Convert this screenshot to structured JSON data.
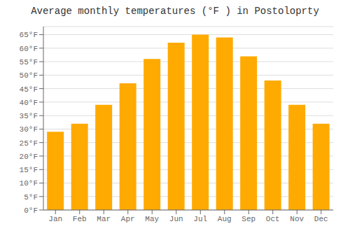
{
  "chart_data": {
    "type": "bar",
    "title": "Average monthly temperatures (°F ) in Postoloprty",
    "categories": [
      "Jan",
      "Feb",
      "Mar",
      "Apr",
      "May",
      "Jun",
      "Jul",
      "Aug",
      "Sep",
      "Oct",
      "Nov",
      "Dec"
    ],
    "values": [
      29,
      32,
      39,
      47,
      56,
      62,
      65,
      64,
      57,
      48,
      39,
      32
    ],
    "color": "#FFAA00",
    "ylim": [
      0,
      68
    ],
    "yticks": [
      {
        "value": 0,
        "label": "0°F"
      },
      {
        "value": 5,
        "label": "5°F"
      },
      {
        "value": 10,
        "label": "10°F"
      },
      {
        "value": 15,
        "label": "15°F"
      },
      {
        "value": 20,
        "label": "20°F"
      },
      {
        "value": 25,
        "label": "25°F"
      },
      {
        "value": 30,
        "label": "30°F"
      },
      {
        "value": 35,
        "label": "35°F"
      },
      {
        "value": 40,
        "label": "40°F"
      },
      {
        "value": 45,
        "label": "45°F"
      },
      {
        "value": 50,
        "label": "50°F"
      },
      {
        "value": 55,
        "label": "55°F"
      },
      {
        "value": 60,
        "label": "60°F"
      },
      {
        "value": 65,
        "label": "65°F"
      }
    ],
    "grid": true
  }
}
